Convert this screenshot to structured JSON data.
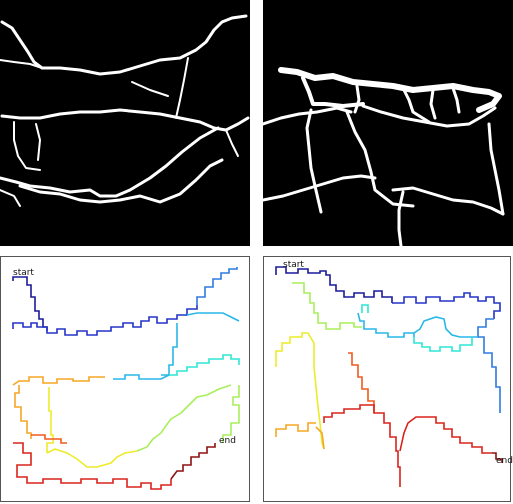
{
  "panels": {
    "top_left": {
      "kind": "crack-mask"
    },
    "top_right": {
      "kind": "crack-mask"
    },
    "bottom_left": {
      "kind": "route-map",
      "start_label": "start",
      "end_label": "end"
    },
    "bottom_right": {
      "kind": "route-map",
      "start_label": "start",
      "end_label": "end"
    }
  },
  "colors": {
    "mask_background": "#000000",
    "crack": "#ffffff",
    "route_palette": [
      "#1a1a9a",
      "#2433c8",
      "#2f7ae0",
      "#29b7e8",
      "#2ee6d6",
      "#a8ef5a",
      "#ecec2a",
      "#f5a623",
      "#ef5a1e",
      "#d8231a",
      "#8f1010"
    ]
  }
}
